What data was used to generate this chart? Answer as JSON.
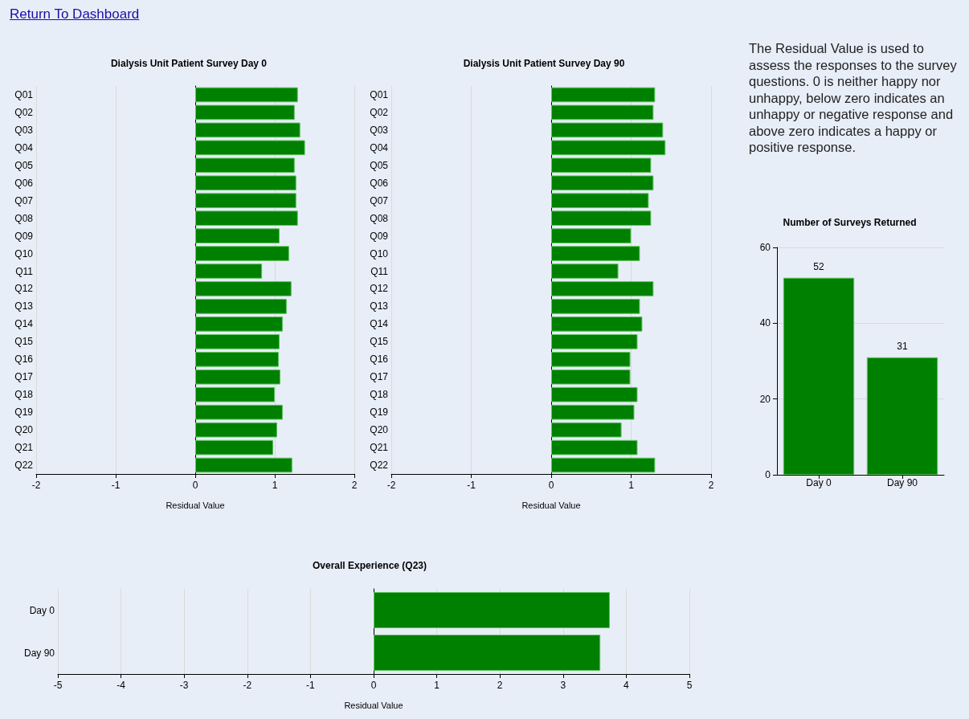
{
  "chart_data": [
    {
      "type": "bar",
      "orientation": "horizontal",
      "title": "Dialysis Unit Patient Survey Day 0",
      "xlabel": "Residual Value",
      "categories": [
        "Q01",
        "Q02",
        "Q03",
        "Q04",
        "Q05",
        "Q06",
        "Q07",
        "Q08",
        "Q09",
        "Q10",
        "Q11",
        "Q12",
        "Q13",
        "Q14",
        "Q15",
        "Q16",
        "Q17",
        "Q18",
        "Q19",
        "Q20",
        "Q21",
        "Q22"
      ],
      "values": [
        1.29,
        1.25,
        1.32,
        1.38,
        1.25,
        1.27,
        1.27,
        1.29,
        1.06,
        1.18,
        0.84,
        1.21,
        1.15,
        1.1,
        1.06,
        1.05,
        1.07,
        1.0,
        1.1,
        1.03,
        0.98,
        1.22
      ],
      "color": "#008000",
      "xlim": [
        -2,
        2
      ],
      "xticks": [
        -2,
        -1,
        0,
        1,
        2
      ],
      "grid": "x"
    },
    {
      "type": "bar",
      "orientation": "horizontal",
      "title": "Dialysis Unit Patient Survey Day 90",
      "xlabel": "Residual Value",
      "categories": [
        "Q01",
        "Q02",
        "Q03",
        "Q04",
        "Q05",
        "Q06",
        "Q07",
        "Q08",
        "Q09",
        "Q10",
        "Q11",
        "Q12",
        "Q13",
        "Q14",
        "Q15",
        "Q16",
        "Q17",
        "Q18",
        "Q19",
        "Q20",
        "Q21",
        "Q22"
      ],
      "values": [
        1.3,
        1.28,
        1.4,
        1.43,
        1.25,
        1.28,
        1.22,
        1.25,
        1.0,
        1.11,
        0.84,
        1.28,
        1.11,
        1.14,
        1.08,
        0.99,
        0.99,
        1.08,
        1.04,
        0.88,
        1.08,
        1.3
      ],
      "color": "#008000",
      "xlim": [
        -2,
        2
      ],
      "xticks": [
        -2,
        -1,
        0,
        1,
        2
      ],
      "grid": "x"
    },
    {
      "type": "bar",
      "title": "Number of Surveys Returned",
      "categories": [
        "Day 0",
        "Day 90"
      ],
      "values": [
        52,
        31
      ],
      "color": "#008000",
      "ylim": [
        0,
        60
      ],
      "yticks": [
        0,
        20,
        40,
        60
      ],
      "grid": "y",
      "data_labels": true
    },
    {
      "type": "bar",
      "orientation": "horizontal",
      "title": "Overall Experience (Q23)",
      "xlabel": "Residual Value",
      "categories": [
        "Day 0",
        "Day 90"
      ],
      "values": [
        3.74,
        3.59
      ],
      "color": "#008000",
      "xlim": [
        -5,
        5
      ],
      "xticks": [
        -5,
        -4,
        -3,
        -2,
        -1,
        0,
        1,
        2,
        3,
        4,
        5
      ],
      "grid": "x"
    },
    {
      "type": "other",
      "annotations": [
        "Return To Dashboard",
        "The Residual Value is used to assess the responses to the survey questions. 0 is neither happy nor unhappy, below zero indicates an unhappy or negative response and above zero indicates a happy or positive response."
      ]
    }
  ]
}
